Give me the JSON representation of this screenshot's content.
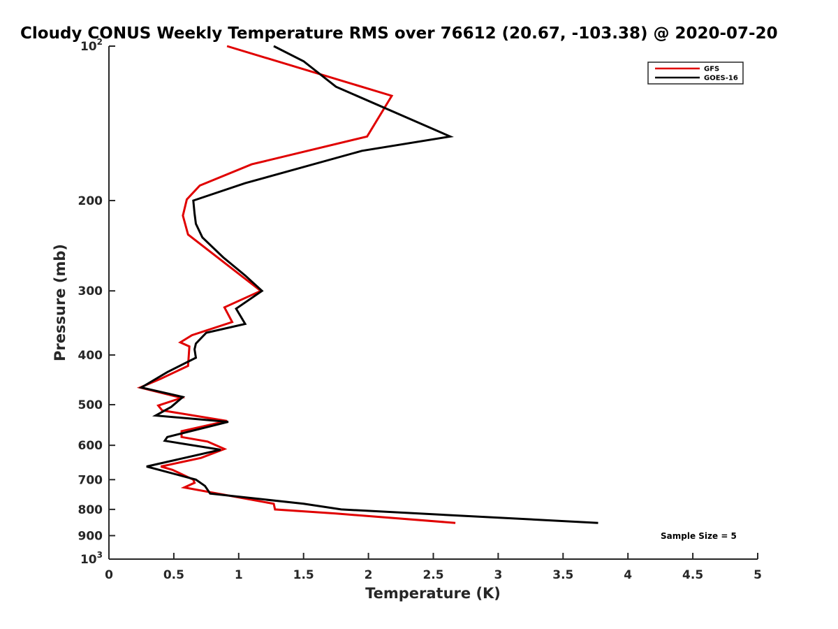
{
  "chart_data": {
    "type": "line",
    "title": "Cloudy CONUS Weekly Temperature RMS over 76612 (20.67, -103.38) @ 2020-07-20",
    "xlabel": "Temperature (K)",
    "ylabel": "Pressure (mb)",
    "xlim": [
      0,
      5
    ],
    "ylim": [
      100,
      1000
    ],
    "yscale": "log",
    "y_reversed": true,
    "x_ticks": [
      0,
      0.5,
      1,
      1.5,
      2,
      2.5,
      3,
      3.5,
      4,
      4.5,
      5
    ],
    "x_tick_labels": [
      "0",
      "0.5",
      "1",
      "1.5",
      "2",
      "2.5",
      "3",
      "3.5",
      "4",
      "4.5",
      "5"
    ],
    "y_ticks": [
      100,
      200,
      300,
      400,
      500,
      600,
      700,
      800,
      900,
      1000
    ],
    "y_tick_labels": [
      {
        "base": "10",
        "exp": "2"
      },
      {
        "base": "200",
        "exp": ""
      },
      {
        "base": "300",
        "exp": ""
      },
      {
        "base": "400",
        "exp": ""
      },
      {
        "base": "500",
        "exp": ""
      },
      {
        "base": "600",
        "exp": ""
      },
      {
        "base": "700",
        "exp": ""
      },
      {
        "base": "800",
        "exp": ""
      },
      {
        "base": "900",
        "exp": ""
      },
      {
        "base": "10",
        "exp": "3"
      }
    ],
    "grid": false,
    "legend_position": "top-right",
    "annotation": "Sample Size = 5",
    "series": [
      {
        "name": "GFS",
        "color": "#e00000",
        "x": [
          0.91,
          2.18,
          1.99,
          1.1,
          0.7,
          0.6,
          0.57,
          0.61,
          1.17,
          0.89,
          0.95,
          0.64,
          0.55,
          0.62,
          0.61,
          0.4,
          0.24,
          0.56,
          0.38,
          0.41,
          0.91,
          0.56,
          0.56,
          0.76,
          0.89,
          0.71,
          0.4,
          0.49,
          0.65,
          0.66,
          0.58,
          1.27,
          1.28,
          1.75,
          2.67
        ],
        "y": [
          100,
          125,
          150,
          170,
          187,
          199,
          214,
          233,
          300,
          323,
          345,
          366,
          378,
          385,
          420,
          445,
          463,
          485,
          502,
          513,
          538,
          563,
          578,
          590,
          610,
          635,
          660,
          670,
          700,
          710,
          725,
          780,
          800,
          815,
          850
        ]
      },
      {
        "name": "GOES-16",
        "color": "#000000",
        "x": [
          1.27,
          1.5,
          1.75,
          2.63,
          1.95,
          1.05,
          0.65,
          0.66,
          0.67,
          0.72,
          0.88,
          1.05,
          1.18,
          0.98,
          1.05,
          0.75,
          0.67,
          0.66,
          0.67,
          0.45,
          0.25,
          0.57,
          0.48,
          0.36,
          0.92,
          0.45,
          0.43,
          0.86,
          0.29,
          0.67,
          0.74,
          0.78,
          1.5,
          1.79,
          3.77
        ],
        "y": [
          100,
          107,
          120,
          150,
          160,
          185,
          200,
          212,
          222,
          236,
          258,
          280,
          300,
          325,
          348,
          362,
          380,
          390,
          405,
          432,
          463,
          483,
          505,
          525,
          540,
          578,
          588,
          612,
          660,
          700,
          720,
          745,
          780,
          800,
          850
        ]
      }
    ]
  }
}
